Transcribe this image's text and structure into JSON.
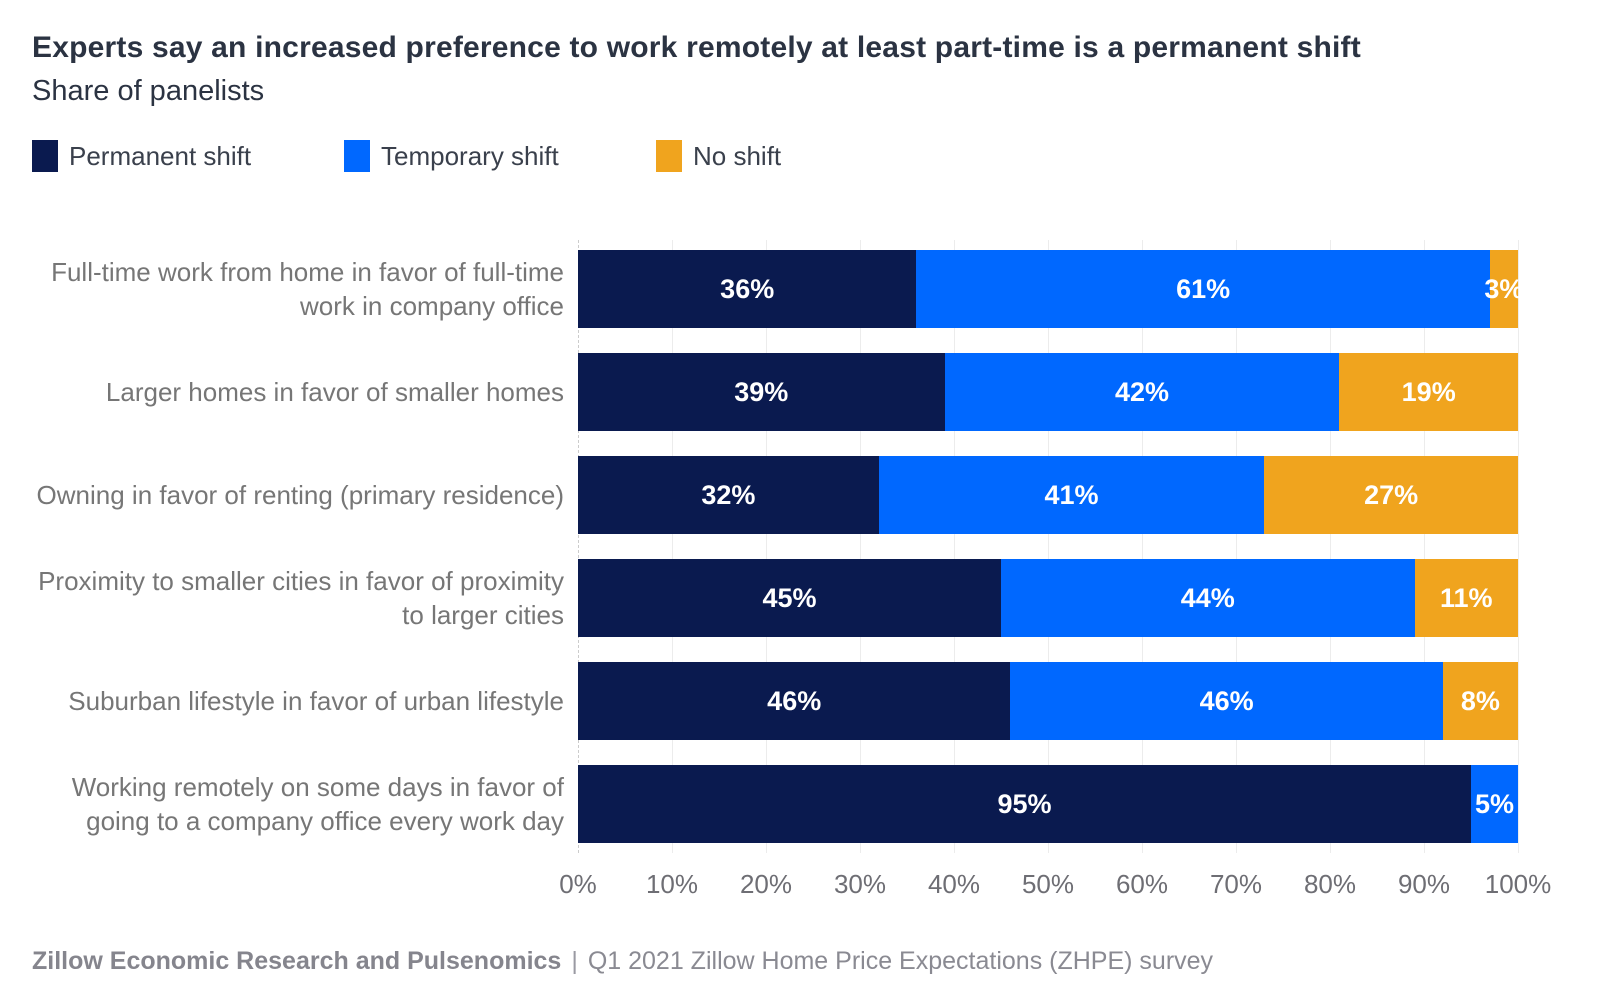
{
  "title": "Experts say an increased preference to work remotely at least part-time is a permanent shift",
  "subtitle": "Share of panelists",
  "chart_data": {
    "type": "bar",
    "orientation": "horizontal",
    "stacked": true,
    "title": "Experts say an increased preference to work remotely at least part-time is a permanent shift",
    "subtitle": "Share of panelists",
    "categories": [
      "Full-time work from home in favor of full-time work in company office",
      "Larger homes in favor of smaller homes",
      "Owning in favor of renting (primary residence)",
      "Proximity to smaller cities in favor of proximity to larger cities",
      "Suburban lifestyle in favor of urban lifestyle",
      "Working remotely on some days in favor of going to a company office every work day"
    ],
    "series": [
      {
        "name": "Permanent shift",
        "color": "#0a1a4f",
        "values": [
          36,
          39,
          32,
          45,
          46,
          95
        ]
      },
      {
        "name": "Temporary shift",
        "color": "#0068ff",
        "values": [
          61,
          42,
          41,
          44,
          46,
          5
        ]
      },
      {
        "name": "No shift",
        "color": "#f0a41e",
        "values": [
          3,
          19,
          27,
          11,
          8,
          0
        ]
      }
    ],
    "value_label_suffix": "%",
    "x_ticks": [
      "0%",
      "10%",
      "20%",
      "30%",
      "40%",
      "50%",
      "60%",
      "70%",
      "80%",
      "90%",
      "100%"
    ],
    "xlim": [
      0,
      100
    ],
    "grid": true,
    "legend_position": "top"
  },
  "footer": {
    "brand": "Zillow Economic Research and Pulsenomics",
    "separator": "|",
    "note": "Q1 2021 Zillow Home Price Expectations (ZHPE) survey"
  }
}
